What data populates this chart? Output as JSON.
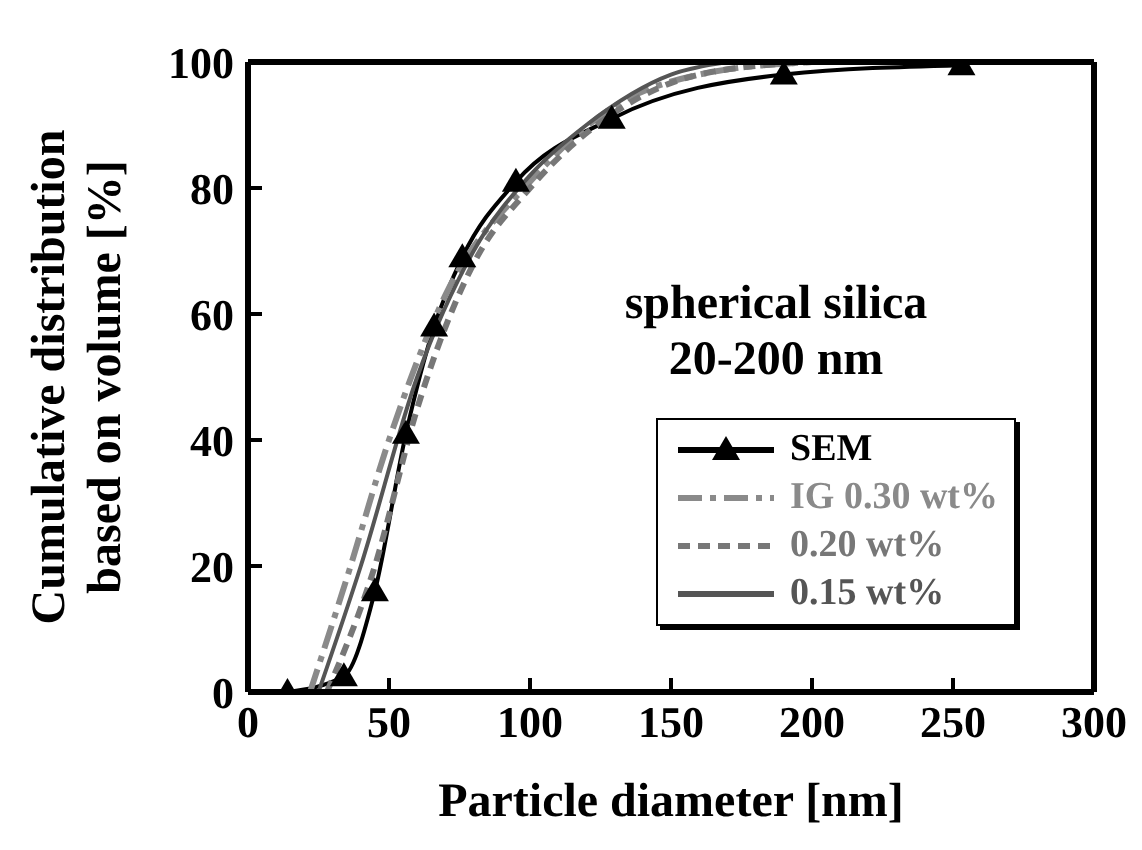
{
  "chart_data": {
    "type": "line",
    "xlabel": "Particle diameter [nm]",
    "ylabel": "Cumulative distribution\nbased on volume  [%]",
    "xlim": [
      0,
      300
    ],
    "xticks": [
      0,
      50,
      100,
      150,
      200,
      250,
      300
    ],
    "ylim": [
      0,
      100
    ],
    "yticks": [
      0,
      20,
      40,
      60,
      80,
      100
    ],
    "legend": "bottom right",
    "annotations": [
      "spherical silica",
      "20-200 nm"
    ],
    "series": [
      {
        "name": "SEM",
        "color": "#000000",
        "marker": "triangle",
        "line_style": "solid",
        "x": [
          14,
          34,
          45,
          56,
          66,
          76,
          95,
          129,
          190,
          253
        ],
        "values": [
          0,
          2.5,
          16,
          41,
          58,
          69,
          81,
          91,
          98,
          99.5
        ]
      },
      {
        "name": "IG 0.30 wt%",
        "color": "#8a8a8a",
        "marker": "none",
        "line_style": "dashdot",
        "x": [
          22,
          35,
          50,
          70,
          100,
          130,
          160,
          200
        ],
        "values": [
          0,
          18,
          40,
          63,
          81,
          93,
          98,
          100
        ]
      },
      {
        "name": "0.20 wt%",
        "color": "#777777",
        "marker": "none",
        "line_style": "dashed",
        "x": [
          28,
          45,
          60,
          80,
          100,
          130,
          160,
          200
        ],
        "values": [
          0,
          20,
          45,
          68,
          80,
          92,
          98,
          100
        ]
      },
      {
        "name": "0.15 wt%",
        "color": "#555555",
        "marker": "none",
        "line_style": "solid",
        "x": [
          25,
          40,
          60,
          80,
          100,
          120,
          150,
          170
        ],
        "values": [
          0,
          20,
          50,
          70,
          82,
          90,
          98,
          100
        ]
      }
    ]
  }
}
